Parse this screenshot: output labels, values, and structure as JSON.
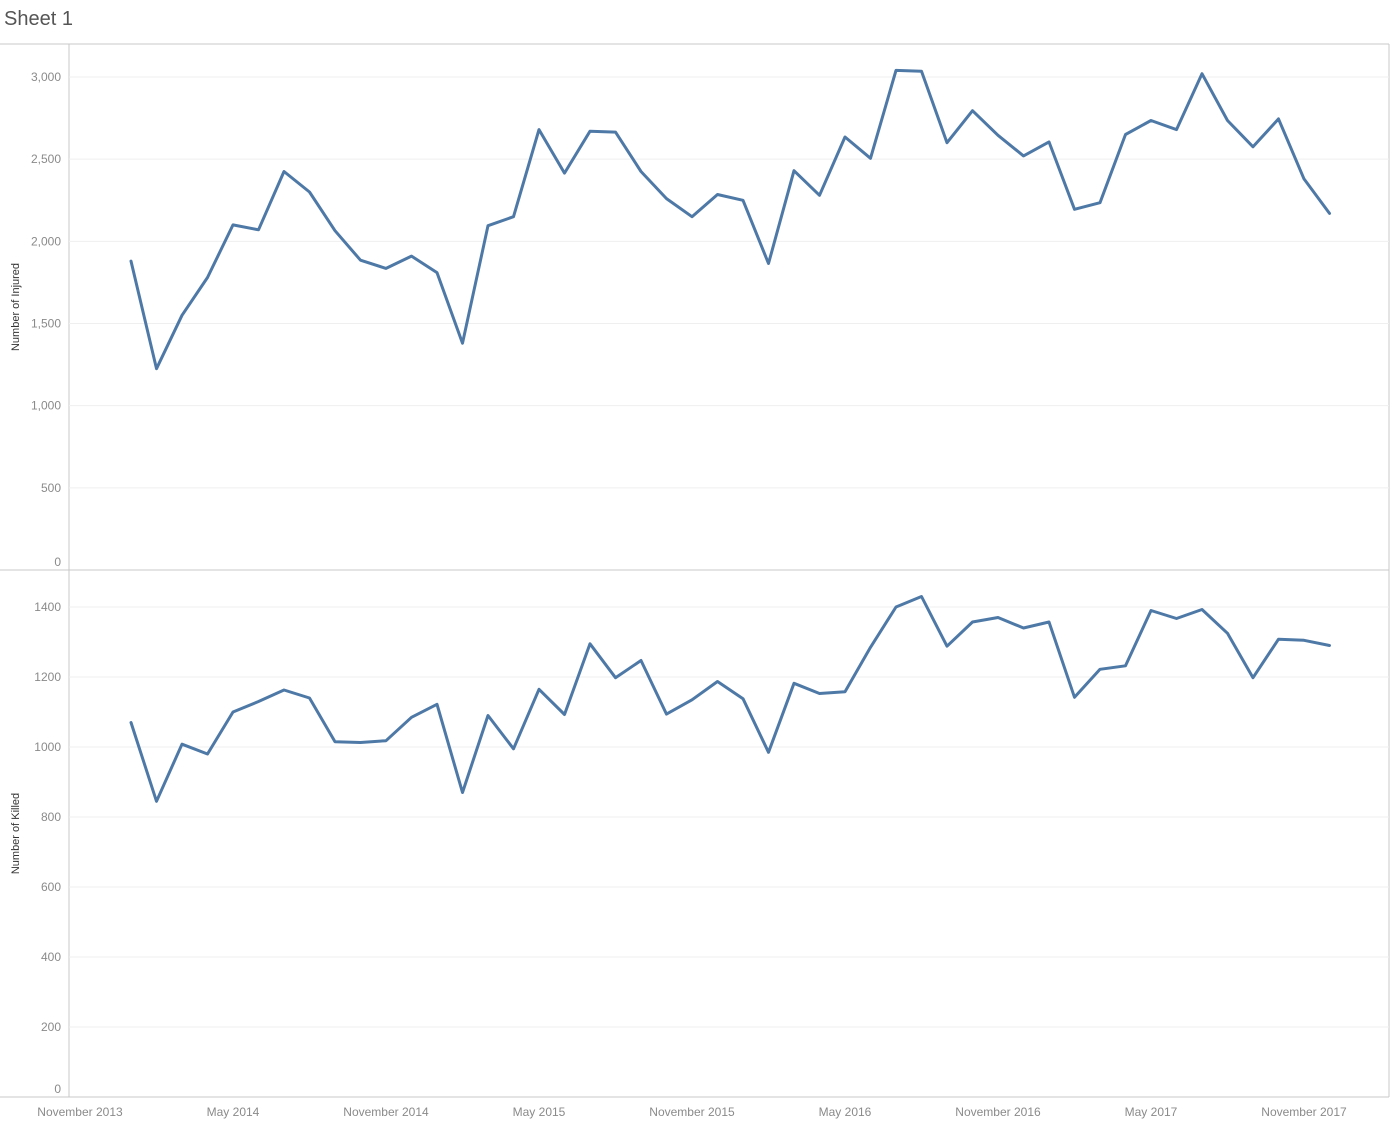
{
  "sheet": {
    "title": "Sheet 1"
  },
  "colors": {
    "line": "#4e79a7",
    "grid": "#efefef",
    "frame": "#c8c8c8",
    "tick_text": "#8a8a8a"
  },
  "chart_data": [
    {
      "type": "line",
      "title": "",
      "ylabel": "Number of Injured",
      "ylim": [
        0,
        3000
      ],
      "yticks": [
        {
          "value": 0,
          "label": "0"
        },
        {
          "value": 500,
          "label": "500"
        },
        {
          "value": 1000,
          "label": "1,000"
        },
        {
          "value": 1500,
          "label": "1,500"
        },
        {
          "value": 2000,
          "label": "2,000"
        },
        {
          "value": 2500,
          "label": "2,500"
        },
        {
          "value": 3000,
          "label": "3,000"
        }
      ],
      "grid": true,
      "x": [
        "2014-01",
        "2014-02",
        "2014-03",
        "2014-04",
        "2014-05",
        "2014-06",
        "2014-07",
        "2014-08",
        "2014-09",
        "2014-10",
        "2014-11",
        "2014-12",
        "2015-01",
        "2015-02",
        "2015-03",
        "2015-04",
        "2015-05",
        "2015-06",
        "2015-07",
        "2015-08",
        "2015-09",
        "2015-10",
        "2015-11",
        "2015-12",
        "2016-01",
        "2016-02",
        "2016-03",
        "2016-04",
        "2016-05",
        "2016-06",
        "2016-07",
        "2016-08",
        "2016-09",
        "2016-10",
        "2016-11",
        "2016-12",
        "2017-01",
        "2017-02",
        "2017-03",
        "2017-04",
        "2017-05",
        "2017-06",
        "2017-07",
        "2017-08",
        "2017-09",
        "2017-10",
        "2017-11",
        "2017-12"
      ],
      "series": [
        {
          "values": [
            1880,
            1225,
            1550,
            1780,
            2100,
            2070,
            2425,
            2300,
            2065,
            1885,
            1835,
            1910,
            1810,
            1380,
            2095,
            2150,
            2680,
            2415,
            2670,
            2665,
            2425,
            2260,
            2150,
            2285,
            2250,
            1865,
            2430,
            2280,
            2635,
            2505,
            3040,
            3035,
            2600,
            2795,
            2645,
            2520,
            2605,
            2195,
            2235,
            2650,
            2735,
            2680,
            3020,
            2735,
            2575,
            2745,
            2380,
            2170
          ]
        }
      ]
    },
    {
      "type": "line",
      "title": "",
      "ylabel": "Number of Killed",
      "ylim": [
        0,
        1450
      ],
      "yticks": [
        {
          "value": 0,
          "label": "0"
        },
        {
          "value": 200,
          "label": "200"
        },
        {
          "value": 400,
          "label": "400"
        },
        {
          "value": 600,
          "label": "600"
        },
        {
          "value": 800,
          "label": "800"
        },
        {
          "value": 1000,
          "label": "1000"
        },
        {
          "value": 1200,
          "label": "1200"
        },
        {
          "value": 1400,
          "label": "1400"
        }
      ],
      "grid": true,
      "x": [
        "2014-01",
        "2014-02",
        "2014-03",
        "2014-04",
        "2014-05",
        "2014-06",
        "2014-07",
        "2014-08",
        "2014-09",
        "2014-10",
        "2014-11",
        "2014-12",
        "2015-01",
        "2015-02",
        "2015-03",
        "2015-04",
        "2015-05",
        "2015-06",
        "2015-07",
        "2015-08",
        "2015-09",
        "2015-10",
        "2015-11",
        "2015-12",
        "2016-01",
        "2016-02",
        "2016-03",
        "2016-04",
        "2016-05",
        "2016-06",
        "2016-07",
        "2016-08",
        "2016-09",
        "2016-10",
        "2016-11",
        "2016-12",
        "2017-01",
        "2017-02",
        "2017-03",
        "2017-04",
        "2017-05",
        "2017-06",
        "2017-07",
        "2017-08",
        "2017-09",
        "2017-10",
        "2017-11",
        "2017-12"
      ],
      "series": [
        {
          "values": [
            1070,
            845,
            1008,
            980,
            1100,
            1130,
            1163,
            1140,
            1015,
            1013,
            1018,
            1085,
            1122,
            870,
            1090,
            995,
            1165,
            1093,
            1295,
            1198,
            1247,
            1094,
            1135,
            1187,
            1138,
            985,
            1182,
            1153,
            1158,
            1285,
            1400,
            1430,
            1288,
            1357,
            1370,
            1340,
            1357,
            1142,
            1222,
            1232,
            1390,
            1367,
            1393,
            1325,
            1198,
            1308,
            1305,
            1290
          ]
        }
      ]
    }
  ],
  "xaxis": {
    "ticks": [
      {
        "value": "2013-11",
        "label": "November 2013"
      },
      {
        "value": "2014-05",
        "label": "May 2014"
      },
      {
        "value": "2014-11",
        "label": "November 2014"
      },
      {
        "value": "2015-05",
        "label": "May 2015"
      },
      {
        "value": "2015-11",
        "label": "November 2015"
      },
      {
        "value": "2016-05",
        "label": "May 2016"
      },
      {
        "value": "2016-11",
        "label": "November 2016"
      },
      {
        "value": "2017-05",
        "label": "May 2017"
      },
      {
        "value": "2017-11",
        "label": "November 2017"
      }
    ]
  }
}
